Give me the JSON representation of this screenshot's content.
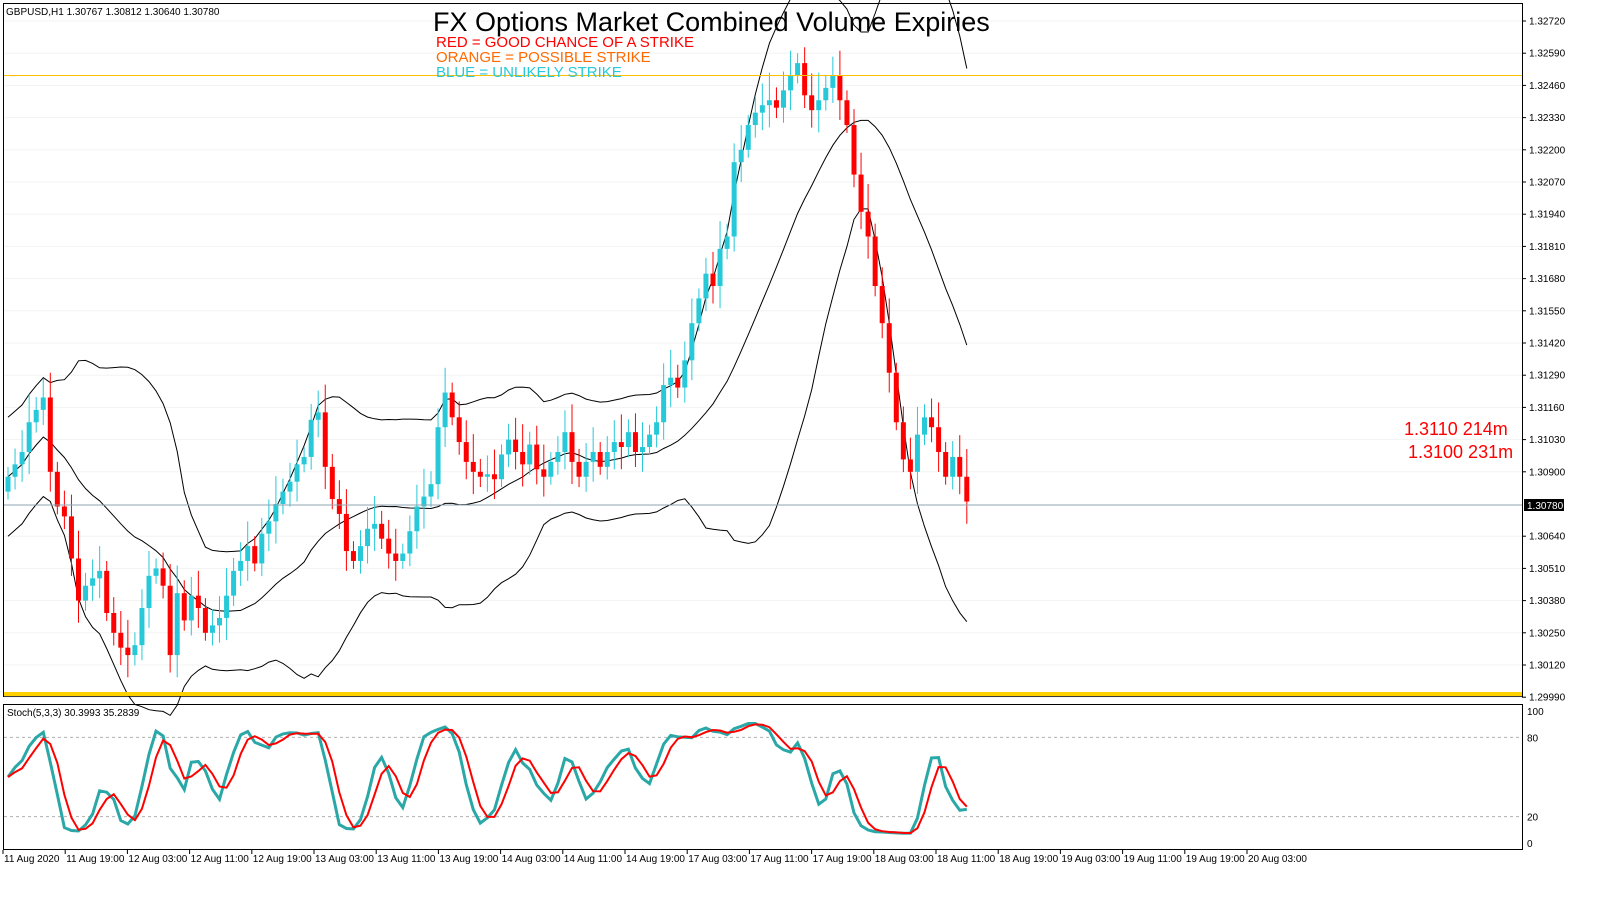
{
  "header": {
    "symbol_line": "GBPUSD,H1  1.30767 1.30812 1.30640 1.30780",
    "title": "FX Options Market Combined Volume Expiries",
    "legend": [
      {
        "text": "RED = GOOD CHANCE OF A STRIKE",
        "color": "#ff0000"
      },
      {
        "text": "ORANGE = POSSIBLE STRIKE",
        "color": "#ff6a00"
      },
      {
        "text": "BLUE = UNLIKELY STRIKE",
        "color": "#27c9d9"
      }
    ]
  },
  "strikes": [
    "1.3110 214m",
    "1.3100 231m"
  ],
  "colors": {
    "bull": "#27c9d9",
    "bear": "#ff0000",
    "doji": "#2ecc40",
    "strike_line": "#ffc000",
    "bottom_band": "#ffd000",
    "current_price_line": "#8fa3b0",
    "stoch_main": "#2aa8a8",
    "stoch_signal": "#ff0000"
  },
  "stoch": {
    "label": "Stoch(5,3,3) 30.3993 35.2839",
    "axis_labels": [
      "100",
      "80",
      "20",
      "0"
    ]
  },
  "chart_data": {
    "type": "candlestick",
    "symbol": "GBPUSD",
    "timeframe": "H1",
    "y_ticks": [
      "1.32720",
      "1.32590",
      "1.32460",
      "1.32330",
      "1.32200",
      "1.32070",
      "1.31940",
      "1.31810",
      "1.31680",
      "1.31550",
      "1.31420",
      "1.31290",
      "1.31160",
      "1.31030",
      "1.30900",
      "1.30640",
      "1.30510",
      "1.30380",
      "1.30250",
      "1.30120",
      "1.29990"
    ],
    "ylim": [
      1.2998,
      1.328
    ],
    "current_price": "1.30780",
    "strike_levels": [
      1.325
    ],
    "x_labels": [
      "11 Aug 2020",
      "11 Aug 19:00",
      "12 Aug 03:00",
      "12 Aug 11:00",
      "12 Aug 19:00",
      "13 Aug 03:00",
      "13 Aug 11:00",
      "13 Aug 19:00",
      "14 Aug 03:00",
      "14 Aug 11:00",
      "14 Aug 19:00",
      "17 Aug 03:00",
      "17 Aug 11:00",
      "17 Aug 19:00",
      "18 Aug 03:00",
      "18 Aug 11:00",
      "18 Aug 19:00",
      "19 Aug 03:00",
      "19 Aug 11:00",
      "19 Aug 19:00",
      "20 Aug 03:00"
    ],
    "close": [
      1.3088,
      1.3093,
      1.3098,
      1.311,
      1.3115,
      1.312,
      1.309,
      1.3076,
      1.3072,
      1.3055,
      1.3038,
      1.3044,
      1.3047,
      1.305,
      1.3033,
      1.3025,
      1.3019,
      1.3016,
      1.302,
      1.3035,
      1.3048,
      1.3051,
      1.3044,
      1.3016,
      1.3041,
      1.303,
      1.304,
      1.3035,
      1.3025,
      1.3028,
      1.3031,
      1.304,
      1.305,
      1.3054,
      1.306,
      1.3053,
      1.3065,
      1.307,
      1.3077,
      1.3082,
      1.3086,
      1.3093,
      1.3096,
      1.3111,
      1.3114,
      1.3092,
      1.3079,
      1.3073,
      1.3058,
      1.3054,
      1.306,
      1.3067,
      1.3069,
      1.3063,
      1.3057,
      1.3054,
      1.3057,
      1.3066,
      1.3076,
      1.308,
      1.3085,
      1.3108,
      1.3122,
      1.3112,
      1.3102,
      1.3094,
      1.309,
      1.3088,
      1.3089,
      1.3087,
      1.3097,
      1.3103,
      1.3098,
      1.3093,
      1.3101,
      1.3091,
      1.3088,
      1.3094,
      1.3098,
      1.3106,
      1.3094,
      1.3088,
      1.3094,
      1.3098,
      1.3092,
      1.3098,
      1.3102,
      1.31,
      1.3106,
      1.3098,
      1.31,
      1.3105,
      1.311,
      1.3125,
      1.3128,
      1.3124,
      1.3135,
      1.315,
      1.316,
      1.317,
      1.3165,
      1.318,
      1.3185,
      1.3215,
      1.322,
      1.323,
      1.3235,
      1.3238,
      1.324,
      1.3237,
      1.3244,
      1.325,
      1.3255,
      1.3242,
      1.3236,
      1.324,
      1.3245,
      1.325,
      1.324,
      1.323,
      1.321,
      1.3195,
      1.3185,
      1.3165,
      1.315,
      1.313,
      1.311,
      1.3095,
      1.309,
      1.3105,
      1.3112,
      1.3108,
      1.3098,
      1.3088,
      1.3096,
      1.3088,
      1.3078
    ]
  }
}
